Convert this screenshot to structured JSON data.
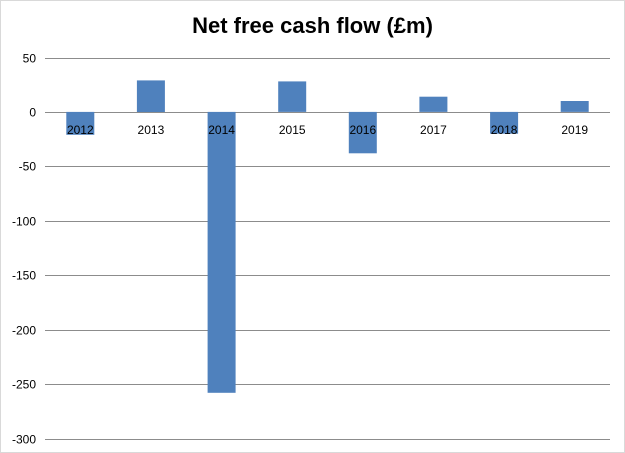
{
  "chart_data": {
    "type": "bar",
    "title": "Net free cash flow (£m)",
    "categories": [
      "2012",
      "2013",
      "2014",
      "2015",
      "2016",
      "2017",
      "2018",
      "2019"
    ],
    "values": [
      -21,
      29,
      -258,
      28,
      -38,
      14,
      -20,
      10
    ],
    "yticks": [
      "50",
      "0",
      "-50",
      "-100",
      "-150",
      "-200",
      "-250",
      "-300"
    ],
    "ylim": [
      -300,
      50
    ],
    "grid": true,
    "legend": "none",
    "bar_color": "#4f81bd",
    "grid_color": "#8c8c8c"
  }
}
